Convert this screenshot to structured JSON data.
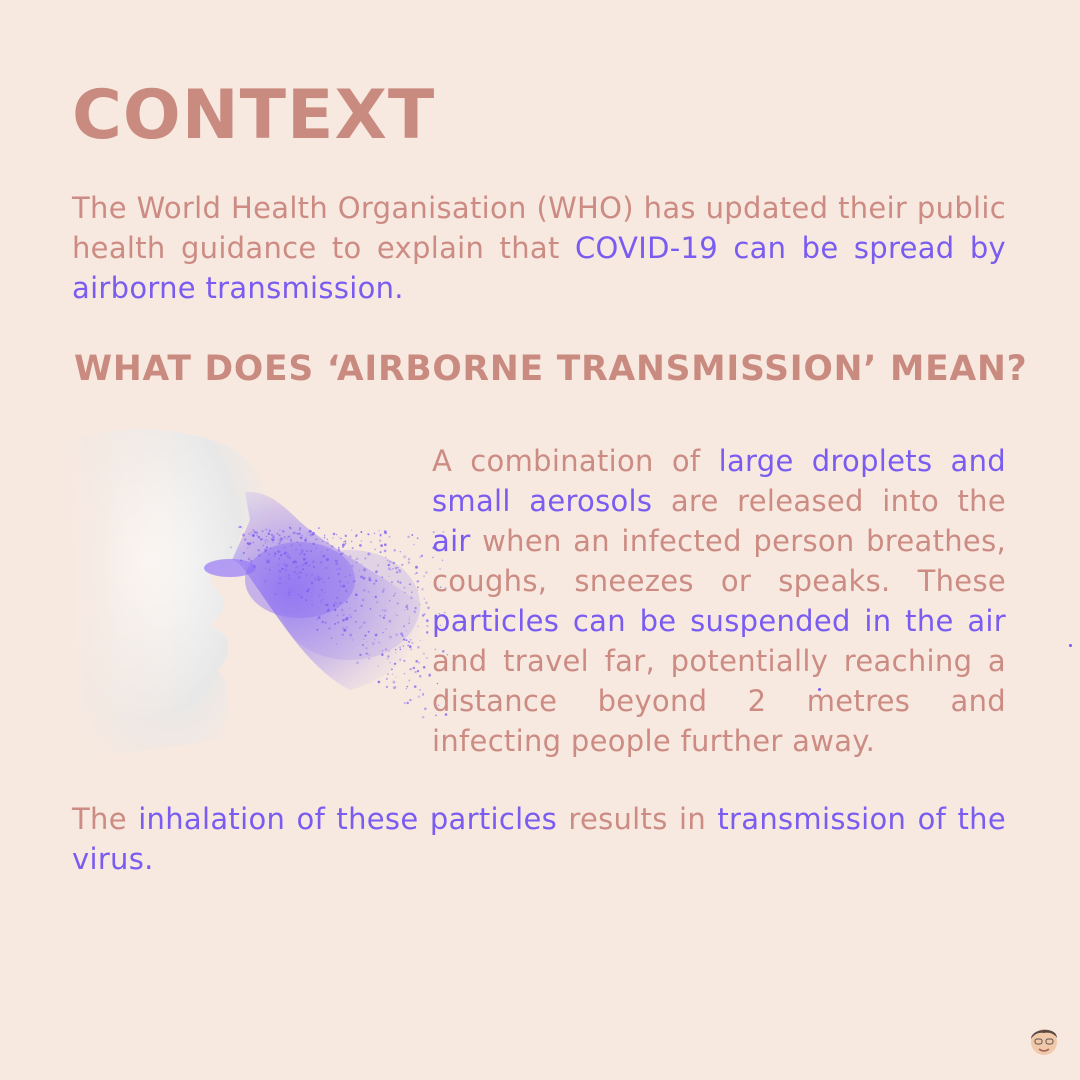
{
  "colors": {
    "background": "#f7e9e0",
    "text": "#cc8c84",
    "heading": "#c98a80",
    "highlight": "#7a5cf0"
  },
  "title": "CONTEXT",
  "intro": {
    "t1": "The World Health Organisation (WHO) has updated their public health guidance to explain that ",
    "h1": "COVID-19 can be spread by airborne transmission."
  },
  "subtitle": "WHAT DOES ‘AIRBORNE TRANSMISSION’ MEAN?",
  "body": {
    "t1": "A combination of ",
    "h1": "large droplets and small aerosols",
    "t2": " are released into the ",
    "h2": "air",
    "t3": " when an infected person breathes, coughs, sneezes or speaks. These ",
    "h3": "particles can be suspended in the air",
    "t4": " and travel far, potentially reaching a distance beyond 2 metres and infecting people further away."
  },
  "conclusion": {
    "t1": "The ",
    "h1": "inhalation of these particles",
    "t2": " results in ",
    "h2": "transmission of the virus."
  },
  "illustration": {
    "subject": "face-breathing-particles"
  },
  "avatar": {
    "icon": "memoji-avatar-icon"
  }
}
